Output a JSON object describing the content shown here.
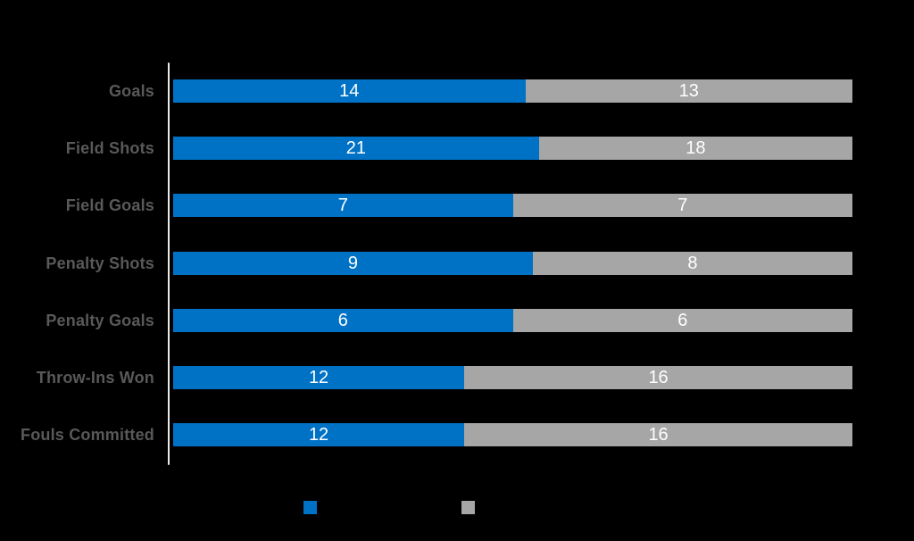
{
  "colors": {
    "background": "#000000",
    "series_blue": "#0072C6",
    "series_gray": "#A6A6A6",
    "category_label": "#595959",
    "value_label": "#FFFFFF",
    "axis_line": "#EAEAE8"
  },
  "chart_data": {
    "type": "bar",
    "orientation": "horizontal",
    "stacked": true,
    "percent_stacked": true,
    "title": "",
    "xlabel": "",
    "ylabel": "",
    "grid": false,
    "legend_position": "bottom",
    "legend_labels_visible": false,
    "categories": [
      "Goals",
      "Field Shots",
      "Field Goals",
      "Penalty Shots",
      "Penalty Goals",
      "Throw-Ins Won",
      "Fouls Committed"
    ],
    "series": [
      {
        "name": "",
        "color": "#0072C6",
        "values": [
          14,
          21,
          7,
          9,
          6,
          12,
          12
        ]
      },
      {
        "name": "",
        "color": "#A6A6A6",
        "values": [
          13,
          18,
          7,
          8,
          6,
          16,
          16
        ]
      }
    ]
  }
}
